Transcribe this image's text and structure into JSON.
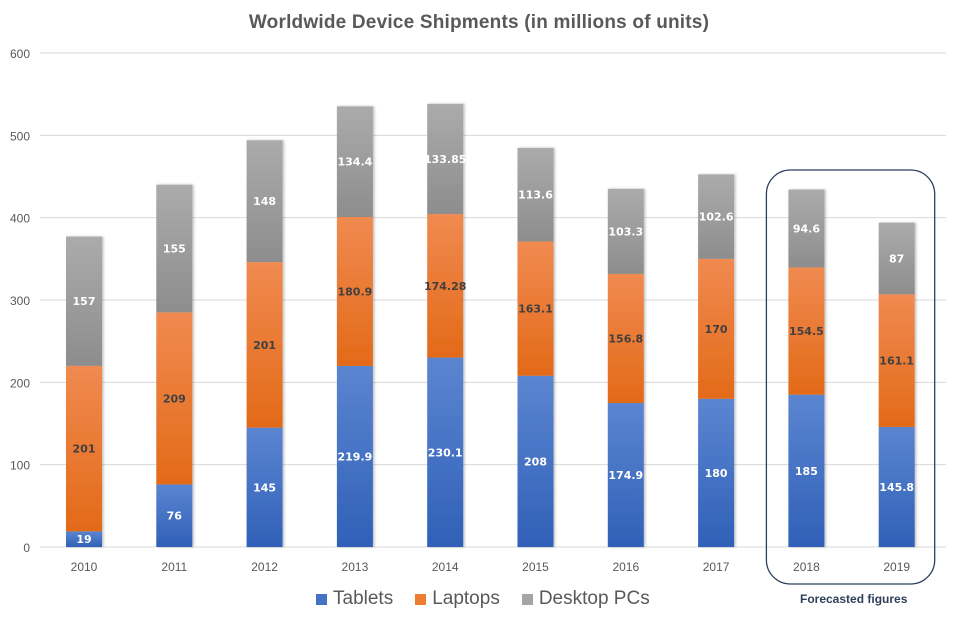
{
  "chart_data": {
    "type": "bar",
    "stacked": true,
    "title": "Worldwide Device Shipments (in millions of units)",
    "xlabel": "",
    "ylabel": "",
    "ylim": [
      0,
      600
    ],
    "yticks": [
      0,
      100,
      200,
      300,
      400,
      500,
      600
    ],
    "grid": true,
    "legend_position": "bottom",
    "categories": [
      "2010",
      "2011",
      "2012",
      "2013",
      "2014",
      "2015",
      "2016",
      "2017",
      "2018",
      "2019"
    ],
    "series": [
      {
        "name": "Tablets",
        "color": "#4472c4",
        "label_color": "#ffffff",
        "values": [
          19,
          76,
          145,
          219.9,
          230.1,
          208,
          174.9,
          180,
          185,
          145.8
        ],
        "labels": [
          "19",
          "76",
          "145",
          "219.9",
          "230.1",
          "208",
          "174.9",
          "180",
          "185",
          "145.8"
        ]
      },
      {
        "name": "Laptops",
        "color": "#ed7d31",
        "label_color": "#404040",
        "values": [
          201,
          209,
          201,
          180.9,
          174.28,
          163.1,
          156.8,
          170,
          154.5,
          161.1
        ],
        "labels": [
          "201",
          "209",
          "201",
          "180.9",
          "174.28",
          "163.1",
          "156.8",
          "170",
          "154.5",
          "161.1"
        ]
      },
      {
        "name": "Desktop PCs",
        "color": "#a5a5a5",
        "label_color": "#ffffff",
        "values": [
          157,
          155,
          148,
          134.4,
          133.85,
          113.6,
          103.3,
          102.6,
          94.6,
          87
        ],
        "labels": [
          "157",
          "155",
          "148",
          "134.4",
          "133.85",
          "113.6",
          "103.3",
          "102.6",
          "94.6",
          "87"
        ]
      }
    ],
    "annotations": [
      {
        "text": "Forecasted figures",
        "highlights_categories": [
          "2018",
          "2019"
        ],
        "style": "rounded-box",
        "color": "#2e3f5c"
      }
    ]
  }
}
